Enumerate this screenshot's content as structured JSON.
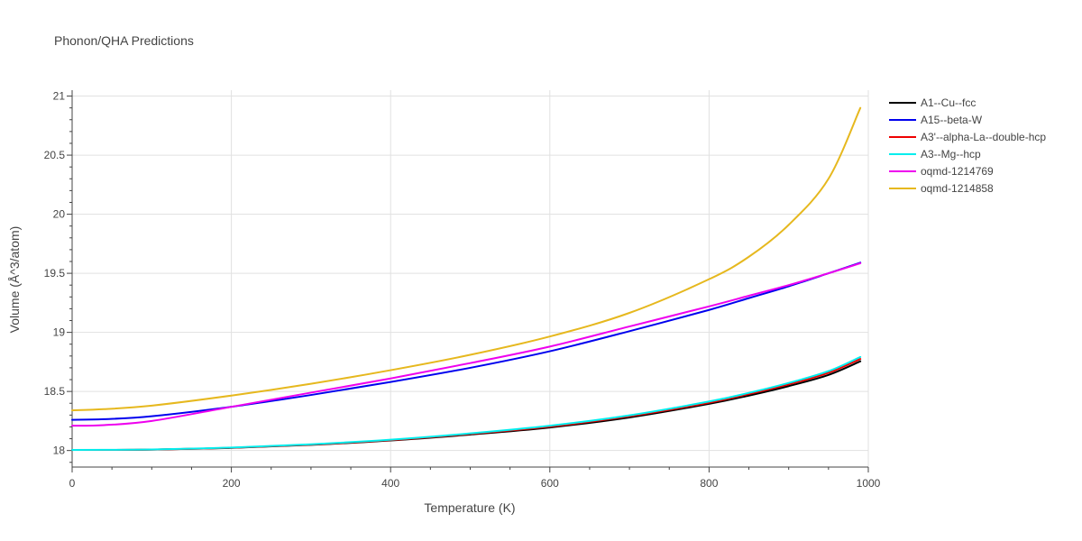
{
  "chart_data": {
    "type": "line",
    "title": "Phonon/QHA Predictions",
    "xlabel": "Temperature (K)",
    "ylabel": "Volume (Å^3/atom)",
    "xlim": [
      0,
      1000
    ],
    "ylim": [
      17.86,
      21.05
    ],
    "x_ticks": [
      0,
      200,
      400,
      600,
      800,
      1000
    ],
    "y_ticks": [
      18,
      18.5,
      19,
      19.5,
      20,
      20.5,
      21
    ],
    "x_tick_labels": [
      "0",
      "200",
      "400",
      "600",
      "800",
      "1000"
    ],
    "y_tick_labels": [
      "18",
      "18.5",
      "19",
      "19.5",
      "20",
      "20.5",
      "21"
    ],
    "grid": true,
    "legend_position": "right",
    "x": [
      0,
      40,
      100,
      200,
      300,
      400,
      500,
      600,
      700,
      800,
      850,
      900,
      950,
      990
    ],
    "series": [
      {
        "name": "A1--Cu--fcc",
        "color": "#000000",
        "values": [
          18.005,
          18.005,
          18.008,
          18.022,
          18.048,
          18.085,
          18.135,
          18.195,
          18.28,
          18.395,
          18.465,
          18.545,
          18.64,
          18.755
        ]
      },
      {
        "name": "A15--beta-W",
        "color": "#0000ee",
        "values": [
          18.26,
          18.265,
          18.29,
          18.37,
          18.47,
          18.58,
          18.7,
          18.84,
          19.01,
          19.19,
          19.29,
          19.39,
          19.5,
          19.59
        ]
      },
      {
        "name": "A3'--alpha-La--double-hcp",
        "color": "#ee0000",
        "values": [
          18.005,
          18.005,
          18.008,
          18.023,
          18.05,
          18.088,
          18.14,
          18.202,
          18.29,
          18.405,
          18.478,
          18.56,
          18.658,
          18.775
        ]
      },
      {
        "name": "A3--Mg--hcp",
        "color": "#00eeee",
        "values": [
          18.005,
          18.006,
          18.009,
          18.025,
          18.053,
          18.092,
          18.145,
          18.21,
          18.298,
          18.415,
          18.488,
          18.572,
          18.672,
          18.792
        ]
      },
      {
        "name": "oqmd-1214769",
        "color": "#ee00ee",
        "values": [
          18.21,
          18.215,
          18.25,
          18.37,
          18.49,
          18.61,
          18.74,
          18.88,
          19.05,
          19.22,
          19.31,
          19.4,
          19.5,
          19.585
        ]
      },
      {
        "name": "oqmd-1214858",
        "color": "#e6b81e",
        "values": [
          18.34,
          18.35,
          18.38,
          18.465,
          18.565,
          18.68,
          18.81,
          18.965,
          19.165,
          19.45,
          19.64,
          19.91,
          20.3,
          20.9
        ]
      }
    ]
  }
}
